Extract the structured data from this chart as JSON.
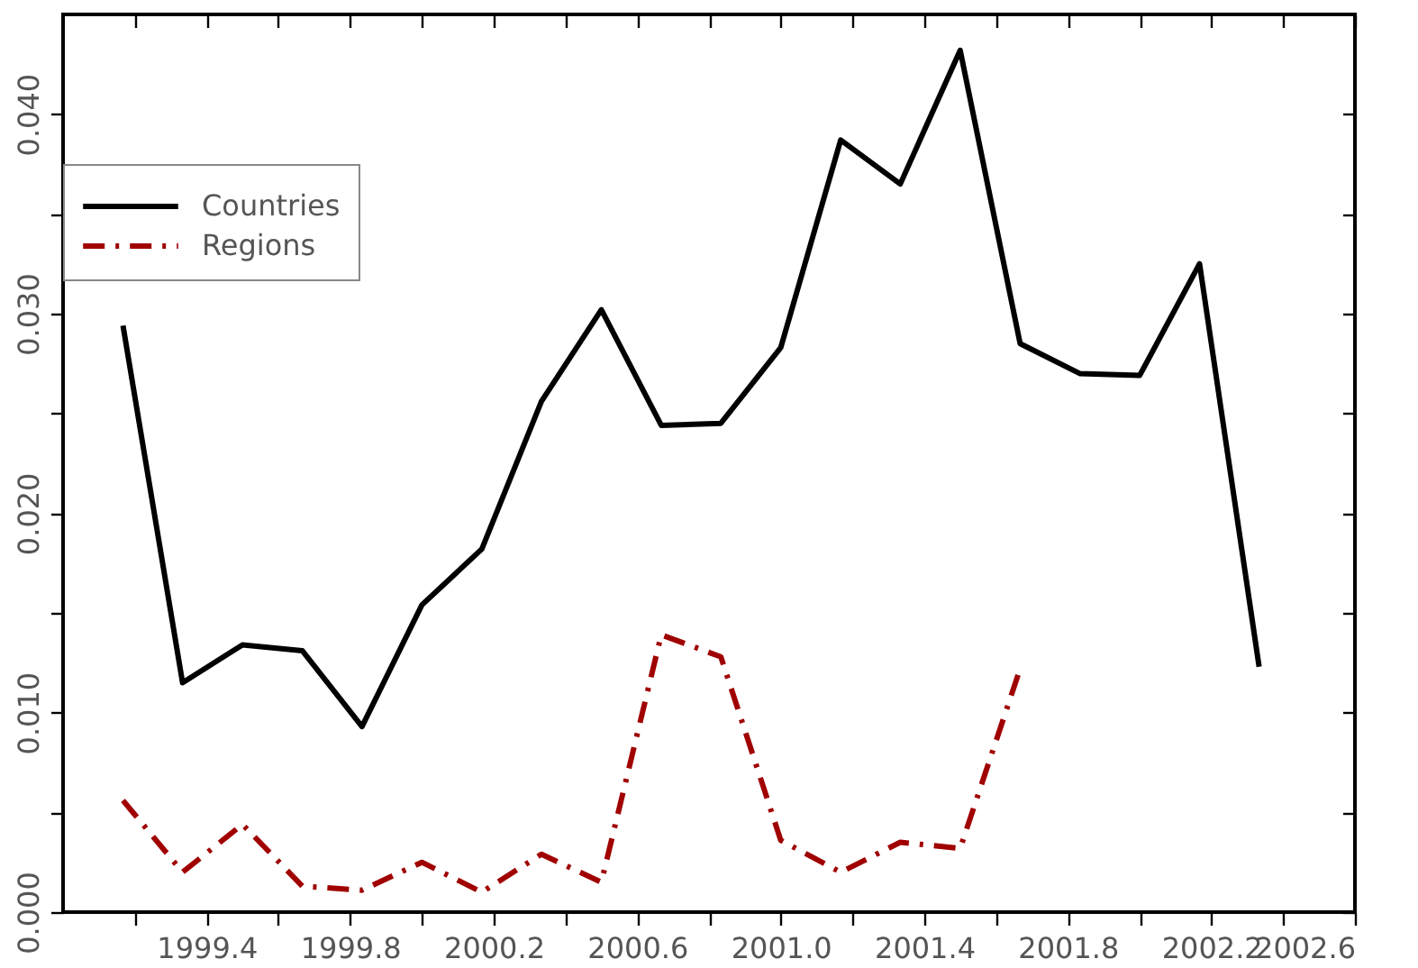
{
  "chart_data": {
    "type": "line",
    "x": [
      1999.167,
      1999.333,
      1999.5,
      1999.667,
      1999.833,
      2000.0,
      2000.167,
      2000.333,
      2000.5,
      2000.667,
      2000.833,
      2001.0,
      2001.167,
      2001.333,
      2001.5,
      2001.667,
      2001.833,
      2002.0,
      2002.167,
      2002.333
    ],
    "series": [
      {
        "name": "Countries",
        "color": "#000000",
        "line_style": "solid",
        "values": [
          0.0294,
          0.0115,
          0.0134,
          0.0131,
          0.0093,
          0.0154,
          0.0182,
          0.0256,
          0.0302,
          0.0244,
          0.0245,
          0.0283,
          0.0387,
          0.0365,
          0.0432,
          0.0285,
          0.027,
          0.0269,
          0.0325,
          0.0123
        ]
      },
      {
        "name": "Regions",
        "color": "#a00000",
        "line_style": "dashdot",
        "values": [
          0.0056,
          0.002,
          0.0044,
          0.0013,
          0.0011,
          0.0025,
          0.001,
          0.0029,
          0.0015,
          0.0139,
          0.0128,
          0.0036,
          0.002,
          0.0035,
          0.0032,
          0.0122,
          null,
          null,
          null,
          null
        ]
      }
    ],
    "xlim": [
      1999.0,
      2002.6
    ],
    "xticks": [
      {
        "value": 1999.2,
        "label": null
      },
      1999.4,
      {
        "value": 1999.6,
        "label": null
      },
      1999.8,
      {
        "value": 2000.0,
        "label": null
      },
      2000.2,
      {
        "value": 2000.4,
        "label": null
      },
      2000.6,
      {
        "value": 2000.8,
        "label": null
      },
      {
        "value": 2001.0,
        "label": "2001.0"
      },
      {
        "value": 2001.2,
        "label": null
      },
      2001.4,
      {
        "value": 2001.6,
        "label": null
      },
      2001.8,
      {
        "value": 2002.0,
        "label": null
      },
      2002.2,
      {
        "value": 2002.4,
        "label": null
      },
      2002.6
    ],
    "ylim": [
      0,
      0.045
    ],
    "yticks": [
      {
        "value": 0,
        "label": "0.000"
      },
      {
        "value": 0.005,
        "label": null
      },
      {
        "value": 0.01,
        "label": "0.010"
      },
      {
        "value": 0.015,
        "label": null
      },
      {
        "value": 0.02,
        "label": "0.020"
      },
      {
        "value": 0.025,
        "label": null
      },
      {
        "value": 0.03,
        "label": "0.030"
      },
      {
        "value": 0.035,
        "label": null
      },
      {
        "value": 0.04,
        "label": "0.040"
      }
    ],
    "legend": "top left"
  }
}
